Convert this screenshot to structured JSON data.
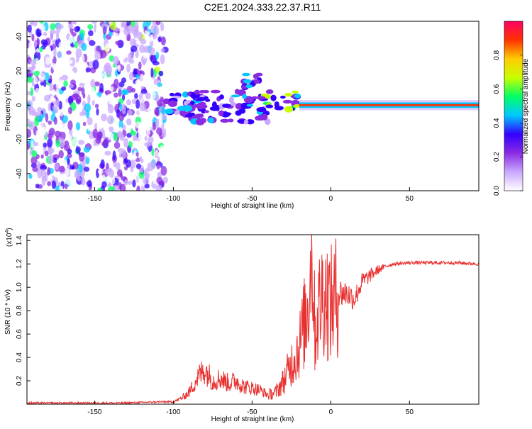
{
  "title": "C2E1.2024.333.22.37.R11",
  "chart_data": [
    {
      "type": "heatmap",
      "xlabel": "Height of straight line (km)",
      "ylabel": "Frequency (Hz)",
      "xlim": [
        -193,
        94
      ],
      "ylim": [
        -50,
        49
      ],
      "xticks": [
        -150,
        -100,
        -50,
        0,
        50
      ],
      "yticks": [
        -40,
        -20,
        0,
        20,
        40
      ],
      "colorbar": {
        "label": "Normalized spectral amplitude",
        "range": [
          0.0,
          1.0
        ],
        "ticks": [
          "0.0",
          "0.2",
          "0.4",
          "0.6",
          "0.8"
        ],
        "colors": [
          "#ffffff",
          "#c9a8ff",
          "#8a2be2",
          "#3300ff",
          "#00c8ff",
          "#00ff66",
          "#c8ff00",
          "#ffcc00",
          "#ff3300",
          "#ff0066"
        ]
      },
      "features": [
        {
          "x": [
            -193,
            -105
          ],
          "y": [
            -50,
            49
          ],
          "amplitude": 0.1
        },
        {
          "x": [
            -105,
            -40
          ],
          "y": [
            -10,
            8
          ],
          "amplitude": 0.35
        },
        {
          "x": [
            -45,
            -20
          ],
          "y": [
            -3,
            8
          ],
          "amplitude": 0.6
        },
        {
          "x": [
            -55,
            -45
          ],
          "y": [
            10,
            18
          ],
          "amplitude": 0.4
        },
        {
          "x": [
            -20,
            94
          ],
          "y": [
            -1,
            1
          ],
          "amplitude": 0.9
        }
      ]
    },
    {
      "type": "line",
      "xlabel": "Height of straight line (km)",
      "ylabel": "SNR (10 * v/v)",
      "multiplier": "(x10",
      "exponent": "4",
      "exponent_close": ")",
      "xlim": [
        -193,
        94
      ],
      "ylim": [
        0,
        1.45
      ],
      "xticks": [
        -150,
        -100,
        -50,
        0,
        50
      ],
      "yticks": [
        "0.2",
        "0.4",
        "0.6",
        "0.8",
        "1.0",
        "1.2",
        "1.4"
      ],
      "color": "#e8302f",
      "series": [
        {
          "x": [
            -193,
            -170,
            -150,
            -130,
            -110,
            -100,
            -95,
            -90,
            -85,
            -80,
            -75,
            -70,
            -65,
            -60,
            -55,
            -50,
            -45,
            -40,
            -35,
            -30,
            -25,
            -20,
            -15,
            -12,
            -10,
            -8,
            -5,
            0,
            5,
            10,
            15,
            20,
            25,
            30,
            35,
            40,
            50,
            60,
            70,
            80,
            94
          ],
          "values": [
            0.01,
            0.01,
            0.01,
            0.01,
            0.02,
            0.02,
            0.05,
            0.1,
            0.22,
            0.3,
            0.2,
            0.22,
            0.18,
            0.2,
            0.15,
            0.14,
            0.12,
            0.08,
            0.1,
            0.2,
            0.35,
            0.5,
            0.8,
            1.3,
            0.6,
            0.8,
            0.95,
            0.85,
            0.95,
            0.95,
            0.9,
            1.05,
            1.1,
            1.15,
            1.18,
            1.2,
            1.21,
            1.21,
            1.21,
            1.21,
            1.2
          ]
        }
      ]
    }
  ]
}
